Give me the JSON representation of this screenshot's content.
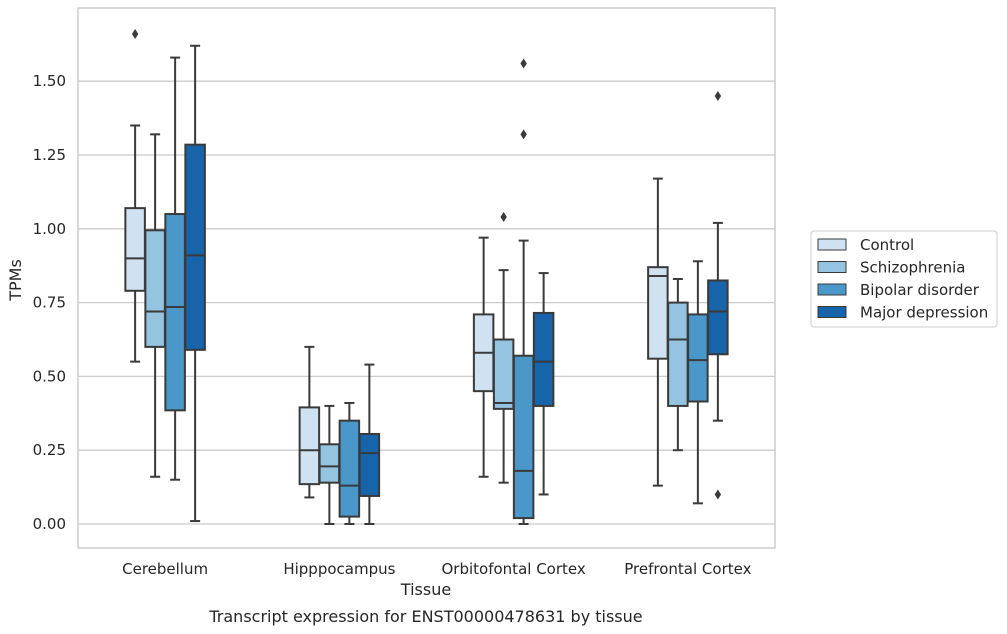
{
  "chart_data": {
    "type": "box",
    "caption": "Transcript expression for ENST00000478631 by tissue",
    "xlabel": "Tissue",
    "ylabel": "TPMs",
    "ylim": [
      -0.08,
      1.75
    ],
    "yticks": [
      "0.00",
      "0.25",
      "0.50",
      "0.75",
      "1.00",
      "1.25",
      "1.50"
    ],
    "grid": true,
    "legend_position": "right",
    "categories": [
      "Cerebellum",
      "Hipppocampus",
      "Orbitofontal Cortex",
      "Prefrontal Cortex"
    ],
    "series": [
      {
        "name": "Control",
        "color": "#d0e1f2",
        "boxes": [
          {
            "whislo": 0.55,
            "q1": 0.79,
            "med": 0.9,
            "q3": 1.07,
            "whishi": 1.35,
            "fliers": [
              1.66
            ]
          },
          {
            "whislo": 0.09,
            "q1": 0.135,
            "med": 0.25,
            "q3": 0.395,
            "whishi": 0.6,
            "fliers": []
          },
          {
            "whislo": 0.16,
            "q1": 0.45,
            "med": 0.58,
            "q3": 0.71,
            "whishi": 0.97,
            "fliers": []
          },
          {
            "whislo": 0.13,
            "q1": 0.56,
            "med": 0.84,
            "q3": 0.87,
            "whishi": 1.17,
            "fliers": []
          }
        ]
      },
      {
        "name": "Schizophrenia",
        "color": "#94c4df",
        "boxes": [
          {
            "whislo": 0.16,
            "q1": 0.6,
            "med": 0.72,
            "q3": 0.995,
            "whishi": 1.32,
            "fliers": []
          },
          {
            "whislo": 0.0,
            "q1": 0.14,
            "med": 0.195,
            "q3": 0.27,
            "whishi": 0.4,
            "fliers": []
          },
          {
            "whislo": 0.14,
            "q1": 0.39,
            "med": 0.41,
            "q3": 0.625,
            "whishi": 0.86,
            "fliers": [
              1.04
            ]
          },
          {
            "whislo": 0.25,
            "q1": 0.4,
            "med": 0.625,
            "q3": 0.75,
            "whishi": 0.83,
            "fliers": []
          }
        ]
      },
      {
        "name": "Bipolar disorder",
        "color": "#4a98c9",
        "boxes": [
          {
            "whislo": 0.15,
            "q1": 0.385,
            "med": 0.735,
            "q3": 1.05,
            "whishi": 1.58,
            "fliers": []
          },
          {
            "whislo": 0.0,
            "q1": 0.025,
            "med": 0.13,
            "q3": 0.35,
            "whishi": 0.41,
            "fliers": []
          },
          {
            "whislo": 0.0,
            "q1": 0.02,
            "med": 0.18,
            "q3": 0.57,
            "whishi": 0.96,
            "fliers": [
              1.32,
              1.56
            ]
          },
          {
            "whislo": 0.07,
            "q1": 0.415,
            "med": 0.555,
            "q3": 0.71,
            "whishi": 0.89,
            "fliers": []
          }
        ]
      },
      {
        "name": "Major depression",
        "color": "#1764ab",
        "boxes": [
          {
            "whislo": 0.01,
            "q1": 0.59,
            "med": 0.91,
            "q3": 1.285,
            "whishi": 1.62,
            "fliers": []
          },
          {
            "whislo": 0.0,
            "q1": 0.095,
            "med": 0.24,
            "q3": 0.305,
            "whishi": 0.54,
            "fliers": []
          },
          {
            "whislo": 0.1,
            "q1": 0.4,
            "med": 0.55,
            "q3": 0.715,
            "whishi": 0.85,
            "fliers": []
          },
          {
            "whislo": 0.35,
            "q1": 0.575,
            "med": 0.72,
            "q3": 0.825,
            "whishi": 1.02,
            "fliers": [
              0.1,
              1.45
            ]
          }
        ]
      }
    ]
  }
}
